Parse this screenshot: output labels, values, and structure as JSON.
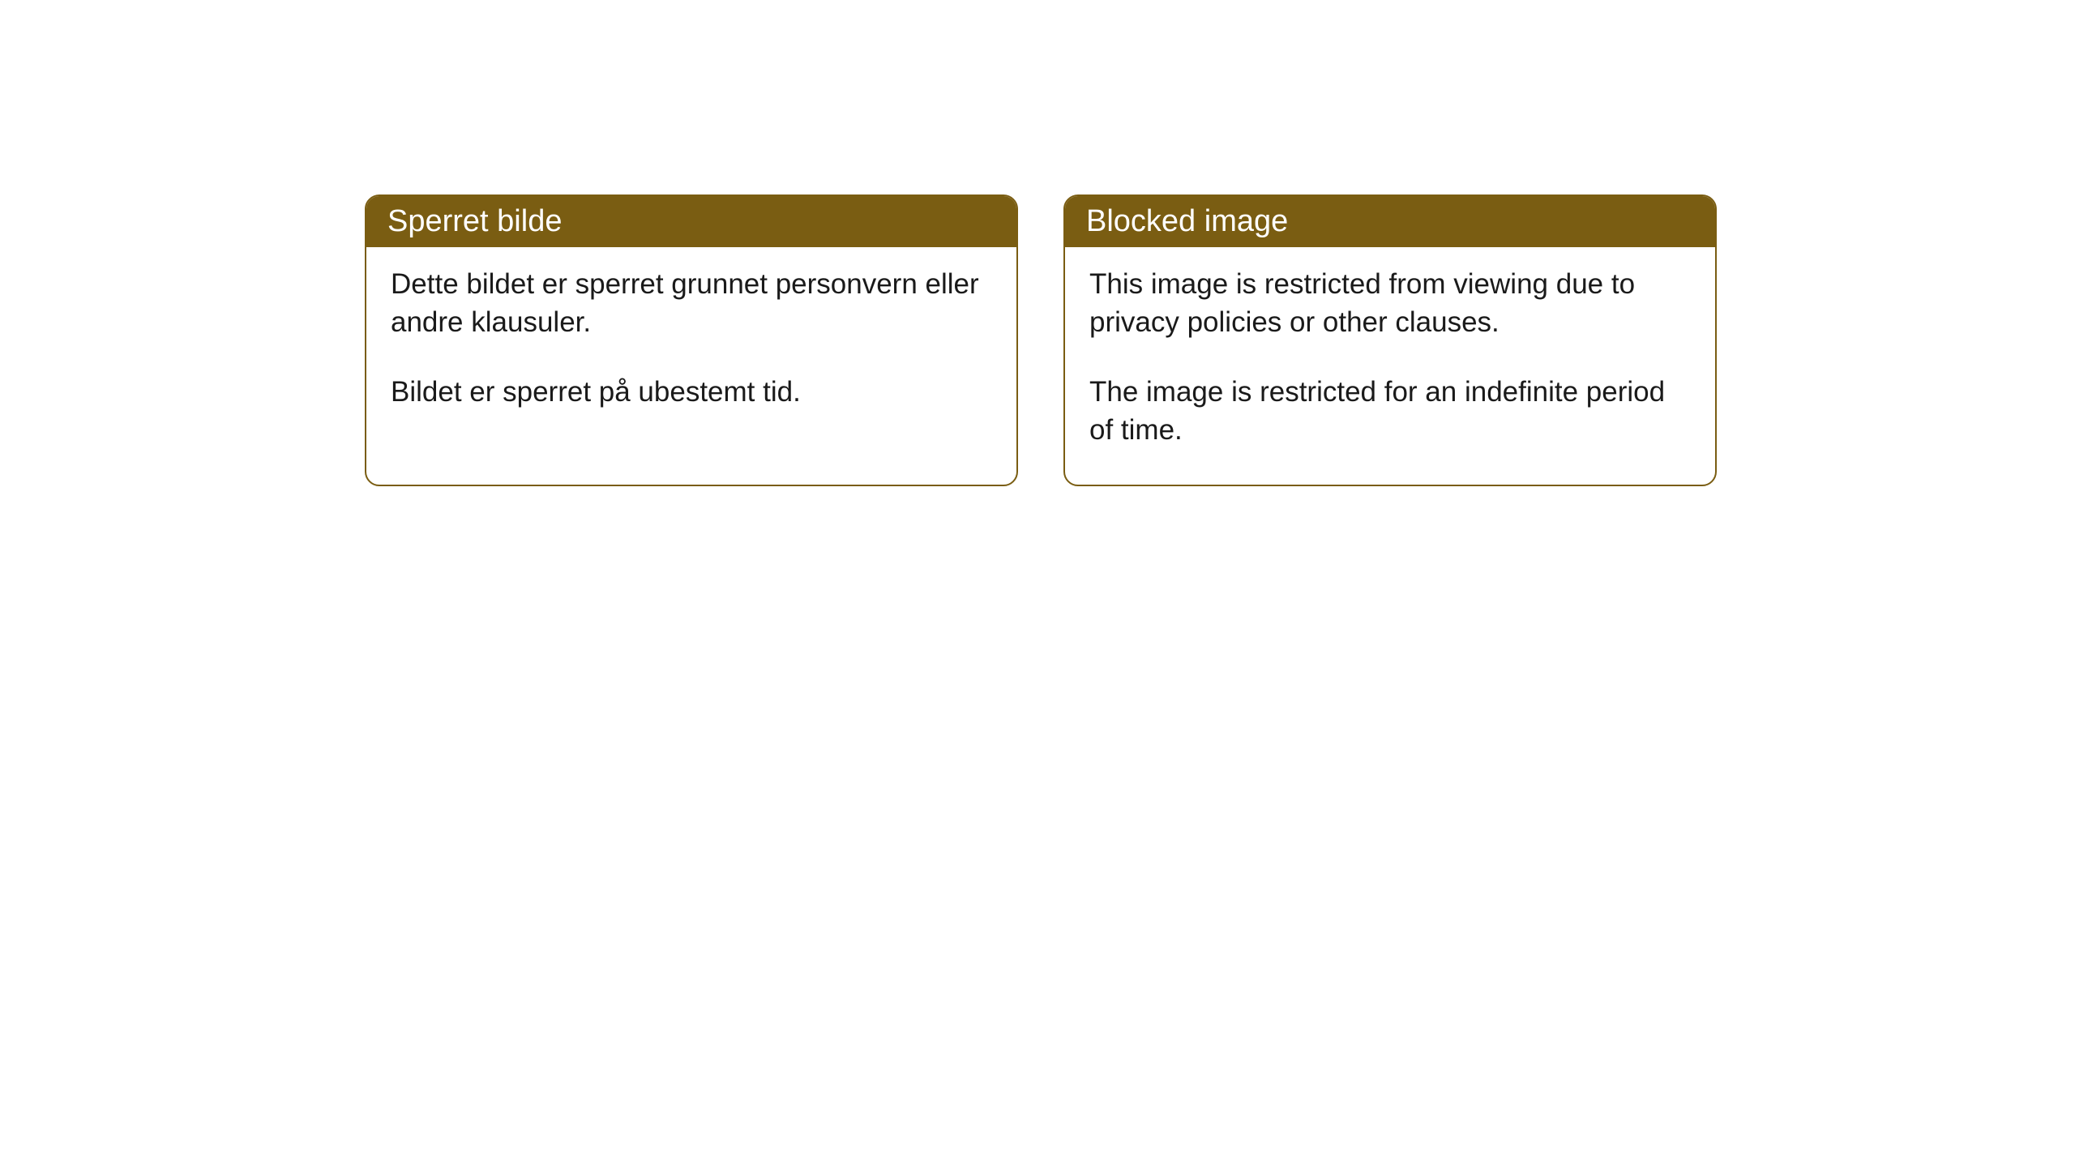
{
  "cards": [
    {
      "title": "Sperret bilde",
      "paragraph1": "Dette bildet er sperret grunnet personvern eller andre klausuler.",
      "paragraph2": "Bildet er sperret på ubestemt tid."
    },
    {
      "title": "Blocked image",
      "paragraph1": "This image is restricted from viewing due to privacy policies or other clauses.",
      "paragraph2": "The image is restricted for an indefinite period of time."
    }
  ],
  "styling": {
    "header_background": "#7a5d12",
    "header_text_color": "#ffffff",
    "border_color": "#7a5d12",
    "body_background": "#ffffff",
    "body_text_color": "#1a1a1a",
    "border_radius": 18,
    "header_fontsize": 38,
    "body_fontsize": 35
  }
}
